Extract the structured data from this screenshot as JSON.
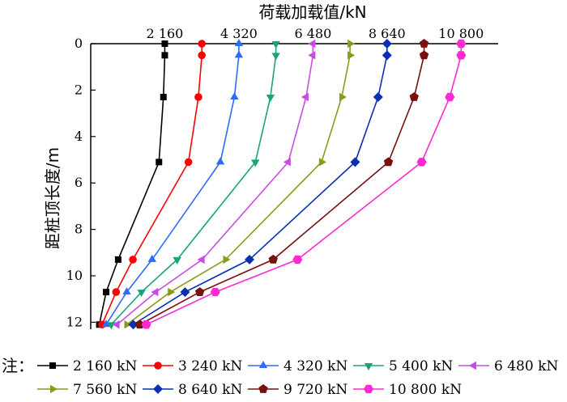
{
  "chart_data": {
    "type": "line",
    "xlabel": "荷载加载值/kN",
    "ylabel": "距桩顶长度/m",
    "xlim": [
      0,
      11880
    ],
    "ylim": [
      0,
      12.3
    ],
    "y_inverted": true,
    "x_axis_position": "top",
    "x_ticks": [
      2160,
      4320,
      6480,
      8640,
      10800
    ],
    "x_tick_labels": [
      "2 160",
      "4 320",
      "6 480",
      "8 640",
      "10 800"
    ],
    "y_ticks": [
      0,
      2,
      4,
      6,
      8,
      10,
      12
    ],
    "y_tick_labels": [
      "0",
      "2",
      "4",
      "6",
      "8",
      "10",
      "12"
    ],
    "legend_prefix": "注：",
    "legend_position": "bottom",
    "series": [
      {
        "name": "2 160 kN",
        "color": "#000000",
        "marker": "square",
        "points": [
          [
            2160,
            0
          ],
          [
            2160,
            0.5
          ],
          [
            2120,
            2.3
          ],
          [
            1990,
            5.1
          ],
          [
            800,
            9.3
          ],
          [
            450,
            10.7
          ],
          [
            250,
            12.1
          ]
        ]
      },
      {
        "name": "3 240 kN",
        "color": "#ff0000",
        "marker": "circle",
        "points": [
          [
            3240,
            0
          ],
          [
            3240,
            0.5
          ],
          [
            3140,
            2.3
          ],
          [
            2850,
            5.1
          ],
          [
            1230,
            9.3
          ],
          [
            740,
            10.7
          ],
          [
            330,
            12.1
          ]
        ]
      },
      {
        "name": "4 320 kN",
        "color": "#2b6cff",
        "marker": "triangle-up",
        "points": [
          [
            4320,
            0
          ],
          [
            4320,
            0.5
          ],
          [
            4190,
            2.3
          ],
          [
            3780,
            5.1
          ],
          [
            1790,
            9.3
          ],
          [
            1050,
            10.7
          ],
          [
            450,
            12.1
          ]
        ]
      },
      {
        "name": "5 400 kN",
        "color": "#1aa37a",
        "marker": "triangle-down",
        "points": [
          [
            5400,
            0
          ],
          [
            5400,
            0.5
          ],
          [
            5240,
            2.3
          ],
          [
            4800,
            5.1
          ],
          [
            2520,
            9.3
          ],
          [
            1480,
            10.7
          ],
          [
            600,
            12.1
          ]
        ]
      },
      {
        "name": "6 480 kN",
        "color": "#c94be6",
        "marker": "triangle-left",
        "points": [
          [
            6480,
            0
          ],
          [
            6480,
            0.5
          ],
          [
            6280,
            2.3
          ],
          [
            5760,
            5.1
          ],
          [
            3250,
            9.3
          ],
          [
            1900,
            10.7
          ],
          [
            770,
            12.1
          ]
        ]
      },
      {
        "name": "7 560 kN",
        "color": "#8a9a1a",
        "marker": "triangle-right",
        "points": [
          [
            7560,
            0
          ],
          [
            7560,
            0.5
          ],
          [
            7320,
            2.3
          ],
          [
            6730,
            5.1
          ],
          [
            3930,
            9.3
          ],
          [
            2320,
            10.7
          ],
          [
            1050,
            12.1
          ]
        ]
      },
      {
        "name": "8 640 kN",
        "color": "#0a2fb3",
        "marker": "diamond",
        "points": [
          [
            8640,
            0
          ],
          [
            8640,
            0.5
          ],
          [
            8380,
            2.3
          ],
          [
            7710,
            5.1
          ],
          [
            4630,
            9.3
          ],
          [
            2750,
            10.7
          ],
          [
            1240,
            12.1
          ]
        ]
      },
      {
        "name": "9 720 kN",
        "color": "#7a0f0f",
        "marker": "pentagon",
        "points": [
          [
            9720,
            0
          ],
          [
            9720,
            0.5
          ],
          [
            9430,
            2.3
          ],
          [
            8680,
            5.1
          ],
          [
            5320,
            9.3
          ],
          [
            3180,
            10.7
          ],
          [
            1430,
            12.1
          ]
        ]
      },
      {
        "name": "10 800 kN",
        "color": "#ff2ad1",
        "marker": "hexagon",
        "points": [
          [
            10800,
            0
          ],
          [
            10800,
            0.5
          ],
          [
            10470,
            2.3
          ],
          [
            9650,
            5.1
          ],
          [
            6030,
            9.3
          ],
          [
            3630,
            10.7
          ],
          [
            1620,
            12.1
          ]
        ]
      }
    ]
  }
}
